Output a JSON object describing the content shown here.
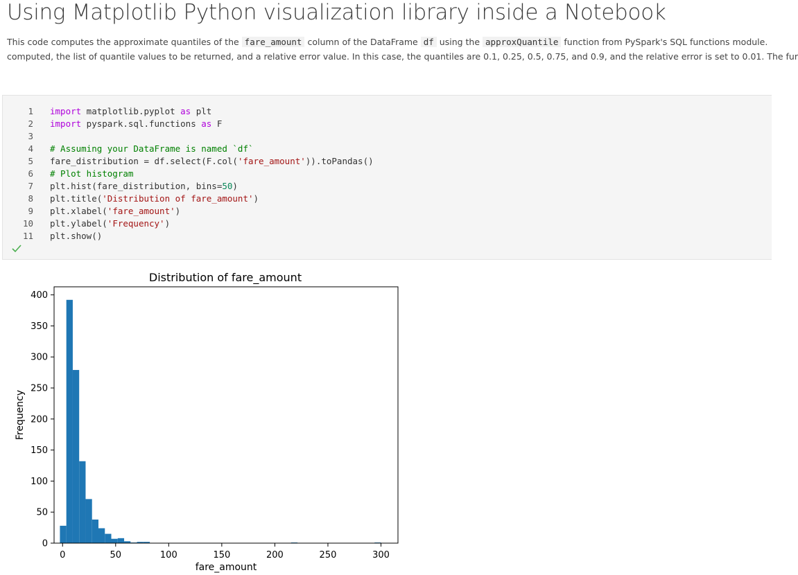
{
  "page": {
    "title": "Using Matplotlib Python visualization library inside a Notebook",
    "description": {
      "line1_a": "This code computes the approximate quantiles of the",
      "line1_code1": "fare_amount",
      "line1_b": "column of the DataFrame",
      "line1_code2": "df",
      "line1_c": "using the",
      "line1_code3": "approxQuantile",
      "line1_d": "function from PySpark's SQL functions module.",
      "line2": "computed, the list of quantile values to be returned, and a relative error value. In this case, the quantiles are 0.1, 0.25, 0.5, 0.75, and 0.9, and the relative error is set to 0.01. The fur"
    }
  },
  "code_cell": {
    "line_numbers": [
      "1",
      "2",
      "3",
      "4",
      "5",
      "6",
      "7",
      "8",
      "9",
      "10",
      "11"
    ],
    "status_icon": "check-icon",
    "status_color": "#4caf50"
  },
  "chart_data": {
    "type": "bar",
    "title": "Distribution of fare_amount",
    "xlabel": "fare_amount",
    "ylabel": "Frequency",
    "xlim": [
      -8,
      316
    ],
    "ylim": [
      0,
      413
    ],
    "x_ticks": [
      0,
      50,
      100,
      150,
      200,
      250,
      300
    ],
    "y_ticks": [
      0,
      50,
      100,
      150,
      200,
      250,
      300,
      350,
      400
    ],
    "bin_start": -2.5,
    "bin_width": 6.05,
    "counts": [
      28,
      392,
      279,
      132,
      71,
      38,
      24,
      15,
      7,
      8,
      3,
      1,
      2,
      2,
      0,
      0,
      0,
      0,
      0,
      0,
      0,
      0,
      0,
      0,
      0,
      0,
      0,
      0,
      0,
      0,
      0,
      0,
      0,
      0,
      0,
      0,
      1,
      0,
      0,
      0,
      0,
      0,
      0,
      0,
      0,
      0,
      0,
      0,
      0,
      1
    ],
    "bar_color": "#1f77b4"
  }
}
